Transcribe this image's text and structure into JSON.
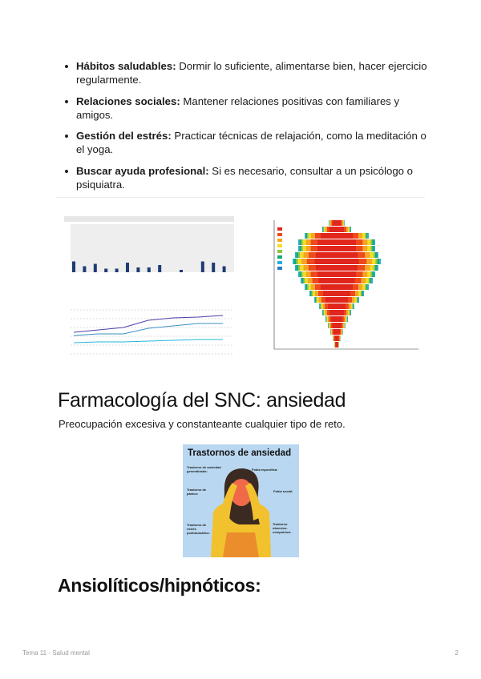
{
  "bullets": [
    {
      "term": "Hábitos saludables:",
      "text": " Dormir lo suficiente, alimentarse bien, hacer ejercicio regularmente."
    },
    {
      "term": "Relaciones sociales:",
      "text": " Mantener relaciones positivas con familiares y amigos."
    },
    {
      "term": "Gestión del estrés:",
      "text": " Practicar técnicas de relajación, como la meditación o el yoga."
    },
    {
      "term": "Buscar ayuda profesional:",
      "text": " Si es necesario, consultar a un psicólogo o psiquiatra."
    }
  ],
  "section1": {
    "title": "Farmacología del SNC: ansiedad",
    "paragraph": "Preocupación excesiva y constanteante cualquier tipo de reto."
  },
  "infographic": {
    "title": "Trastornos de ansiedad",
    "items": [
      "Trastorno de ansiedad generalizado:",
      "Trastorno de pánico:",
      "Trastorno de estrés postraumático:",
      "Fobia específica:",
      "Fobia social:",
      "Trastorno obsesivo-compulsivo:"
    ]
  },
  "section2": {
    "title": "Ansiolíticos/hipnóticos:"
  },
  "footer": {
    "left": "Tema 11 - Salud mental",
    "page": "2"
  },
  "colors": {
    "dark_bar": "#1f3b73",
    "light_bar": "#7fb2e5",
    "infographic_bg": "#b9d7f0"
  }
}
